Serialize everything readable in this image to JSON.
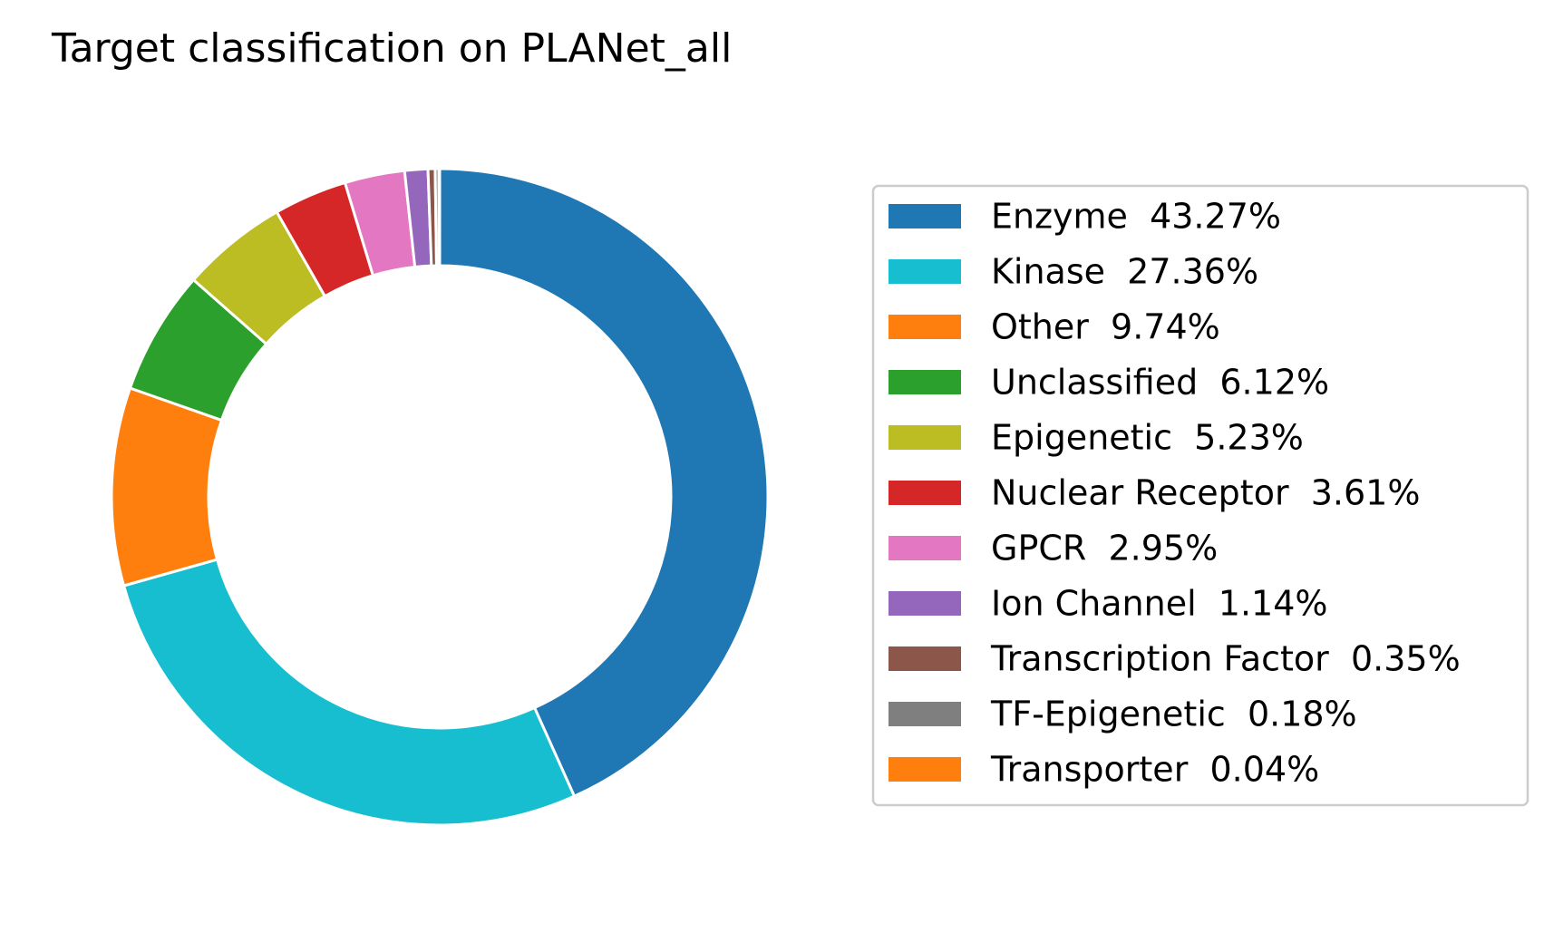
{
  "chart_data": {
    "type": "pie",
    "style": "donut",
    "title": "Target classification on PLANet_all",
    "legend_position": "right",
    "start_angle": "top",
    "direction": "clockwise",
    "slices": [
      {
        "label": "Enzyme",
        "value": 43.27,
        "display": "43.27%",
        "color": "#1f77b4"
      },
      {
        "label": "Kinase",
        "value": 27.36,
        "display": "27.36%",
        "color": "#17becf"
      },
      {
        "label": "Other",
        "value": 9.74,
        "display": "9.74%",
        "color": "#ff7f0e"
      },
      {
        "label": "Unclassified",
        "value": 6.12,
        "display": "6.12%",
        "color": "#2ca02c"
      },
      {
        "label": "Epigenetic",
        "value": 5.23,
        "display": "5.23%",
        "color": "#bcbd22"
      },
      {
        "label": "Nuclear Receptor",
        "value": 3.61,
        "display": "3.61%",
        "color": "#d62728"
      },
      {
        "label": "GPCR",
        "value": 2.95,
        "display": "2.95%",
        "color": "#e377c2"
      },
      {
        "label": "Ion Channel",
        "value": 1.14,
        "display": "1.14%",
        "color": "#9467bd"
      },
      {
        "label": "Transcription Factor",
        "value": 0.35,
        "display": "0.35%",
        "color": "#8c564b"
      },
      {
        "label": "TF-Epigenetic",
        "value": 0.18,
        "display": "0.18%",
        "color": "#7f7f7f"
      },
      {
        "label": "Transporter",
        "value": 0.04,
        "display": "0.04%",
        "color": "#ff7f0e"
      }
    ]
  }
}
